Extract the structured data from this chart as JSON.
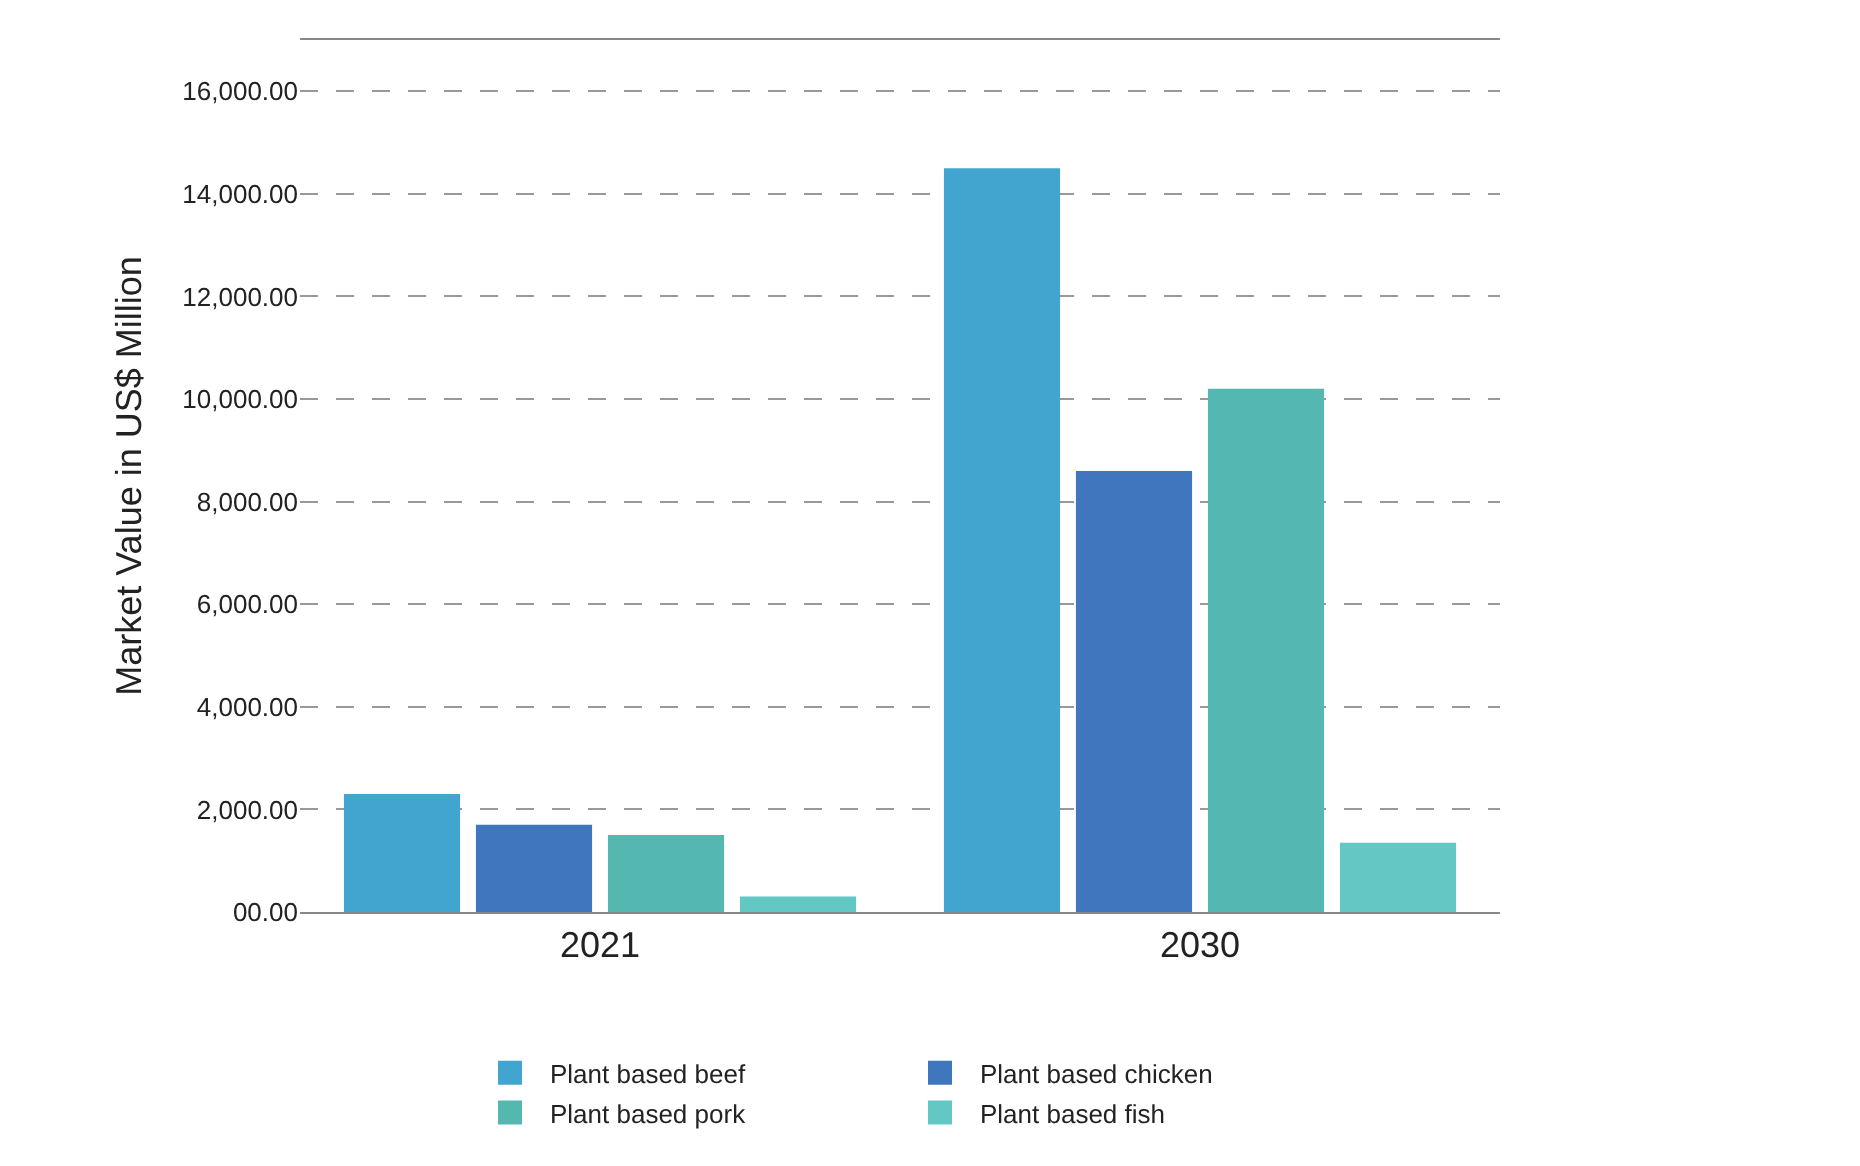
{
  "chart_data": {
    "type": "bar",
    "ylabel": "Market Value in US$ Million",
    "categories": [
      "2021",
      "2030"
    ],
    "series": [
      {
        "name": "Plant based beef",
        "color": "#42a5d0",
        "values": [
          2300,
          14500
        ]
      },
      {
        "name": "Plant based chicken",
        "color": "#3f76be",
        "values": [
          1700,
          8600
        ]
      },
      {
        "name": "Plant based pork",
        "color": "#55b8b0",
        "values": [
          1500,
          10200
        ]
      },
      {
        "name": "Plant based fish",
        "color": "#63c7c3",
        "values": [
          300,
          1350
        ]
      }
    ],
    "ylim": [
      0,
      17000
    ],
    "yticks": [
      {
        "value": 0,
        "label": "00.00"
      },
      {
        "value": 2000,
        "label": "2,000.00"
      },
      {
        "value": 4000,
        "label": "4,000.00"
      },
      {
        "value": 6000,
        "label": "6,000.00"
      },
      {
        "value": 8000,
        "label": "8,000.00"
      },
      {
        "value": 10000,
        "label": "10,000.00"
      },
      {
        "value": 12000,
        "label": "12,000.00"
      },
      {
        "value": 14000,
        "label": "14,000.00"
      },
      {
        "value": 16000,
        "label": "16,000.00"
      }
    ],
    "grid": "y",
    "legend": "bottom"
  }
}
